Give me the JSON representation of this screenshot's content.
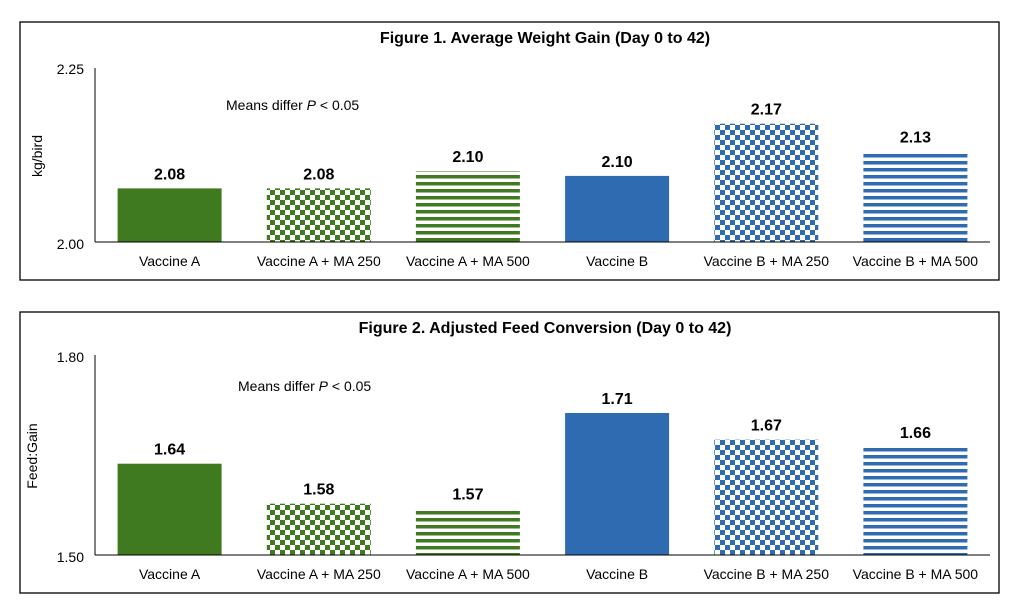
{
  "chart_data": [
    {
      "type": "bar",
      "title": "Figure 1. Average Weight Gain (Day 0 to 42)",
      "ylabel": "kg/bird",
      "ylim": [
        2.0,
        2.25
      ],
      "yticks": [
        "2.25",
        "2.00"
      ],
      "note_prefix": "Means differ ",
      "note_italic": "P",
      "note_suffix": " < 0.05",
      "categories": [
        "Vaccine A",
        "Vaccine A + MA 250",
        "Vaccine A + MA 500",
        "Vaccine B",
        "Vaccine B + MA 250",
        "Vaccine B + MA 500"
      ],
      "values": [
        2.077,
        2.077,
        2.102,
        2.095,
        2.17,
        2.13
      ],
      "value_labels": [
        "2.08",
        "2.08",
        "2.10",
        "2.10",
        "2.17",
        "2.13"
      ],
      "fill_patterns": [
        "solid-green",
        "check-green",
        "stripe-green",
        "solid-blue",
        "check-blue",
        "stripe-blue"
      ],
      "grid": false
    },
    {
      "type": "bar",
      "title": "Figure 2. Adjusted Feed Conversion (Day 0 to 42)",
      "ylabel": "Feed:Gain",
      "ylim": [
        1.5,
        1.8
      ],
      "yticks": [
        "1.80",
        "1.50"
      ],
      "note_prefix": "Means differ ",
      "note_italic": "P",
      "note_suffix": " < 0.05",
      "categories": [
        "Vaccine A",
        "Vaccine A + MA 250",
        "Vaccine A + MA 500",
        "Vaccine B",
        "Vaccine B + MA 250",
        "Vaccine B + MA 500"
      ],
      "values": [
        1.637,
        1.577,
        1.57,
        1.713,
        1.673,
        1.662
      ],
      "value_labels": [
        "1.64",
        "1.58",
        "1.57",
        "1.71",
        "1.67",
        "1.66"
      ],
      "fill_patterns": [
        "solid-green",
        "check-green",
        "stripe-green",
        "solid-blue",
        "check-blue",
        "stripe-blue"
      ],
      "grid": false
    }
  ],
  "colors": {
    "green": "#3f7a21",
    "blue": "#2e6bb0"
  }
}
